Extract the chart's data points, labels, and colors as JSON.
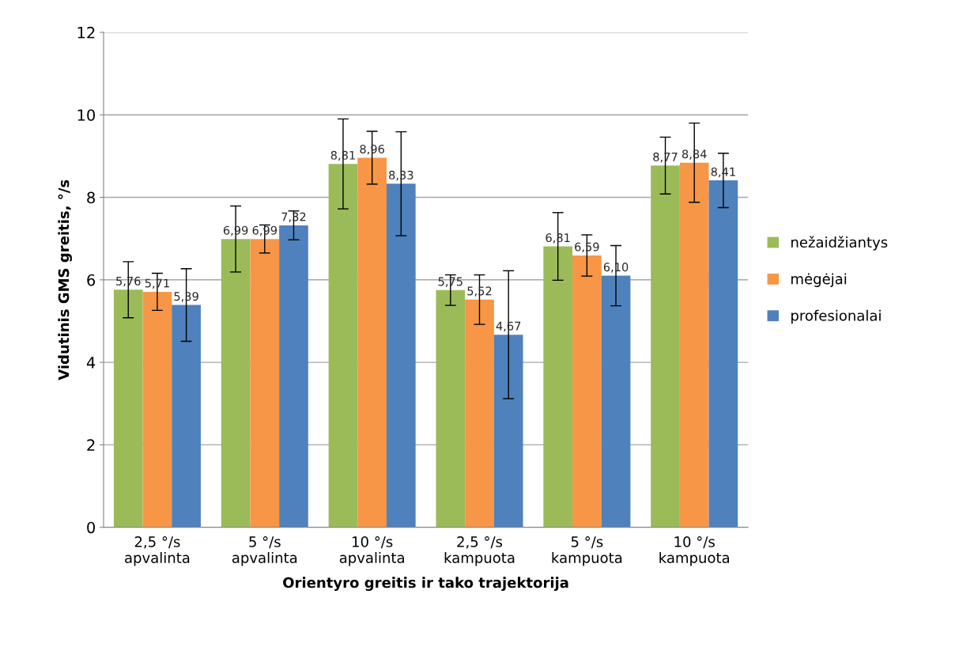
{
  "chart_data": {
    "type": "bar",
    "xlabel": "Orientyro greitis ir tako trajektorija",
    "ylabel": "Vidutinis GMS greitis, °/s",
    "categories": [
      "2,5 °/s\napvalinta",
      "5 °/s\napvalinta",
      "10 °/s\napvalinta",
      "2,5 °/s\nkampuota",
      "5 °/s\nkampuota",
      "10 °/s\nkampuota"
    ],
    "series": [
      {
        "name": "nežaidžiantys",
        "color": "#9bbb59",
        "values": [
          5.76,
          6.99,
          8.81,
          5.75,
          6.81,
          8.77
        ],
        "errors": [
          0.68,
          0.8,
          1.09,
          0.37,
          0.82,
          0.69
        ],
        "value_labels": [
          "5,76",
          "6,99",
          "8,81",
          "5,75",
          "6,81",
          "8,77"
        ]
      },
      {
        "name": "mėgėjai",
        "color": "#f79646",
        "values": [
          5.71,
          6.99,
          8.96,
          5.52,
          6.59,
          8.84
        ],
        "errors": [
          0.45,
          0.34,
          0.64,
          0.6,
          0.5,
          0.96
        ],
        "value_labels": [
          "5,71",
          "6,99",
          "8,96",
          "5,52",
          "6,59",
          "8,84"
        ]
      },
      {
        "name": "profesionalai",
        "color": "#4f81bd",
        "values": [
          5.39,
          7.32,
          8.33,
          4.67,
          6.1,
          8.41
        ],
        "errors": [
          0.88,
          0.35,
          1.26,
          1.55,
          0.73,
          0.66
        ],
        "value_labels": [
          "5,39",
          "7,32",
          "8,33",
          "4,67",
          "6,10",
          "8,41"
        ]
      }
    ],
    "ylim": [
      0,
      12
    ],
    "yticks": [
      0,
      2,
      4,
      6,
      8,
      10,
      12
    ],
    "grid": "y",
    "legend": "right"
  }
}
